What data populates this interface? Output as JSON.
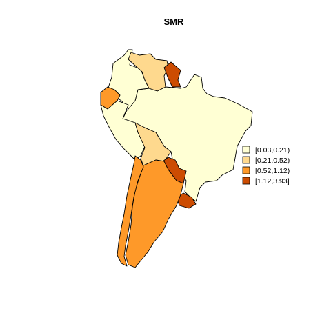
{
  "title": "SMR",
  "colors": {
    "class1": "#FFFFD4",
    "class2": "#FED98E",
    "class3": "#FE9929",
    "class4": "#CC4C02"
  },
  "legend": {
    "items": [
      {
        "label": "[0.03,0.21)",
        "color": "#FFFFD4"
      },
      {
        "label": "[0.21,0.52)",
        "color": "#FED98E"
      },
      {
        "label": "[0.52,1.12)",
        "color": "#FE9929"
      },
      {
        "label": "[1.12,3.93]",
        "color": "#CC4C02"
      }
    ]
  },
  "regions": [
    {
      "name": "Colombia",
      "class": 1
    },
    {
      "name": "Venezuela",
      "class": 2
    },
    {
      "name": "Guyana",
      "class": 4
    },
    {
      "name": "Ecuador",
      "class": 3
    },
    {
      "name": "Peru",
      "class": 1
    },
    {
      "name": "Brazil",
      "class": 1
    },
    {
      "name": "Bolivia",
      "class": 2
    },
    {
      "name": "Paraguay",
      "class": 4
    },
    {
      "name": "Uruguay",
      "class": 4
    },
    {
      "name": "Chile",
      "class": 3
    },
    {
      "name": "Argentina",
      "class": 3
    }
  ]
}
